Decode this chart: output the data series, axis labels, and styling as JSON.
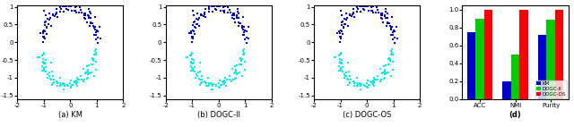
{
  "scatter_xlim": [
    -2,
    2
  ],
  "scatter_ylim": [
    -1.6,
    1.05
  ],
  "scatter_xticks": [
    -2,
    -1,
    0,
    1,
    2
  ],
  "scatter_yticks": [
    -1.5,
    -1,
    -0.5,
    0,
    0.5,
    1
  ],
  "scatter_yticklabels": [
    "-1.5",
    "-1",
    "-0.5",
    "0",
    "0.5",
    "1"
  ],
  "n_outer": 100,
  "n_inner": 100,
  "dark_blue": "#0000CD",
  "cyan": "#00EEEE",
  "bar_categories": [
    "ACC",
    "NMI",
    "Purity"
  ],
  "bar_km": [
    0.75,
    0.2,
    0.72
  ],
  "bar_dogcii": [
    0.9,
    0.5,
    0.89
  ],
  "bar_dogcos": [
    1.0,
    1.0,
    1.0
  ],
  "bar_colors": [
    "#0000CD",
    "#00CC00",
    "#FF0000"
  ],
  "legend_labels": [
    "KM",
    "DOGC-II",
    "DOGC-OS"
  ],
  "subplot_labels": [
    "(a) KM",
    "(b) DOGC-II",
    "(c) DOGC-OS",
    "(d)"
  ],
  "bar_ylim": [
    0,
    1.05
  ],
  "bar_yticks": [
    0,
    0.2,
    0.4,
    0.6,
    0.8,
    1.0
  ]
}
